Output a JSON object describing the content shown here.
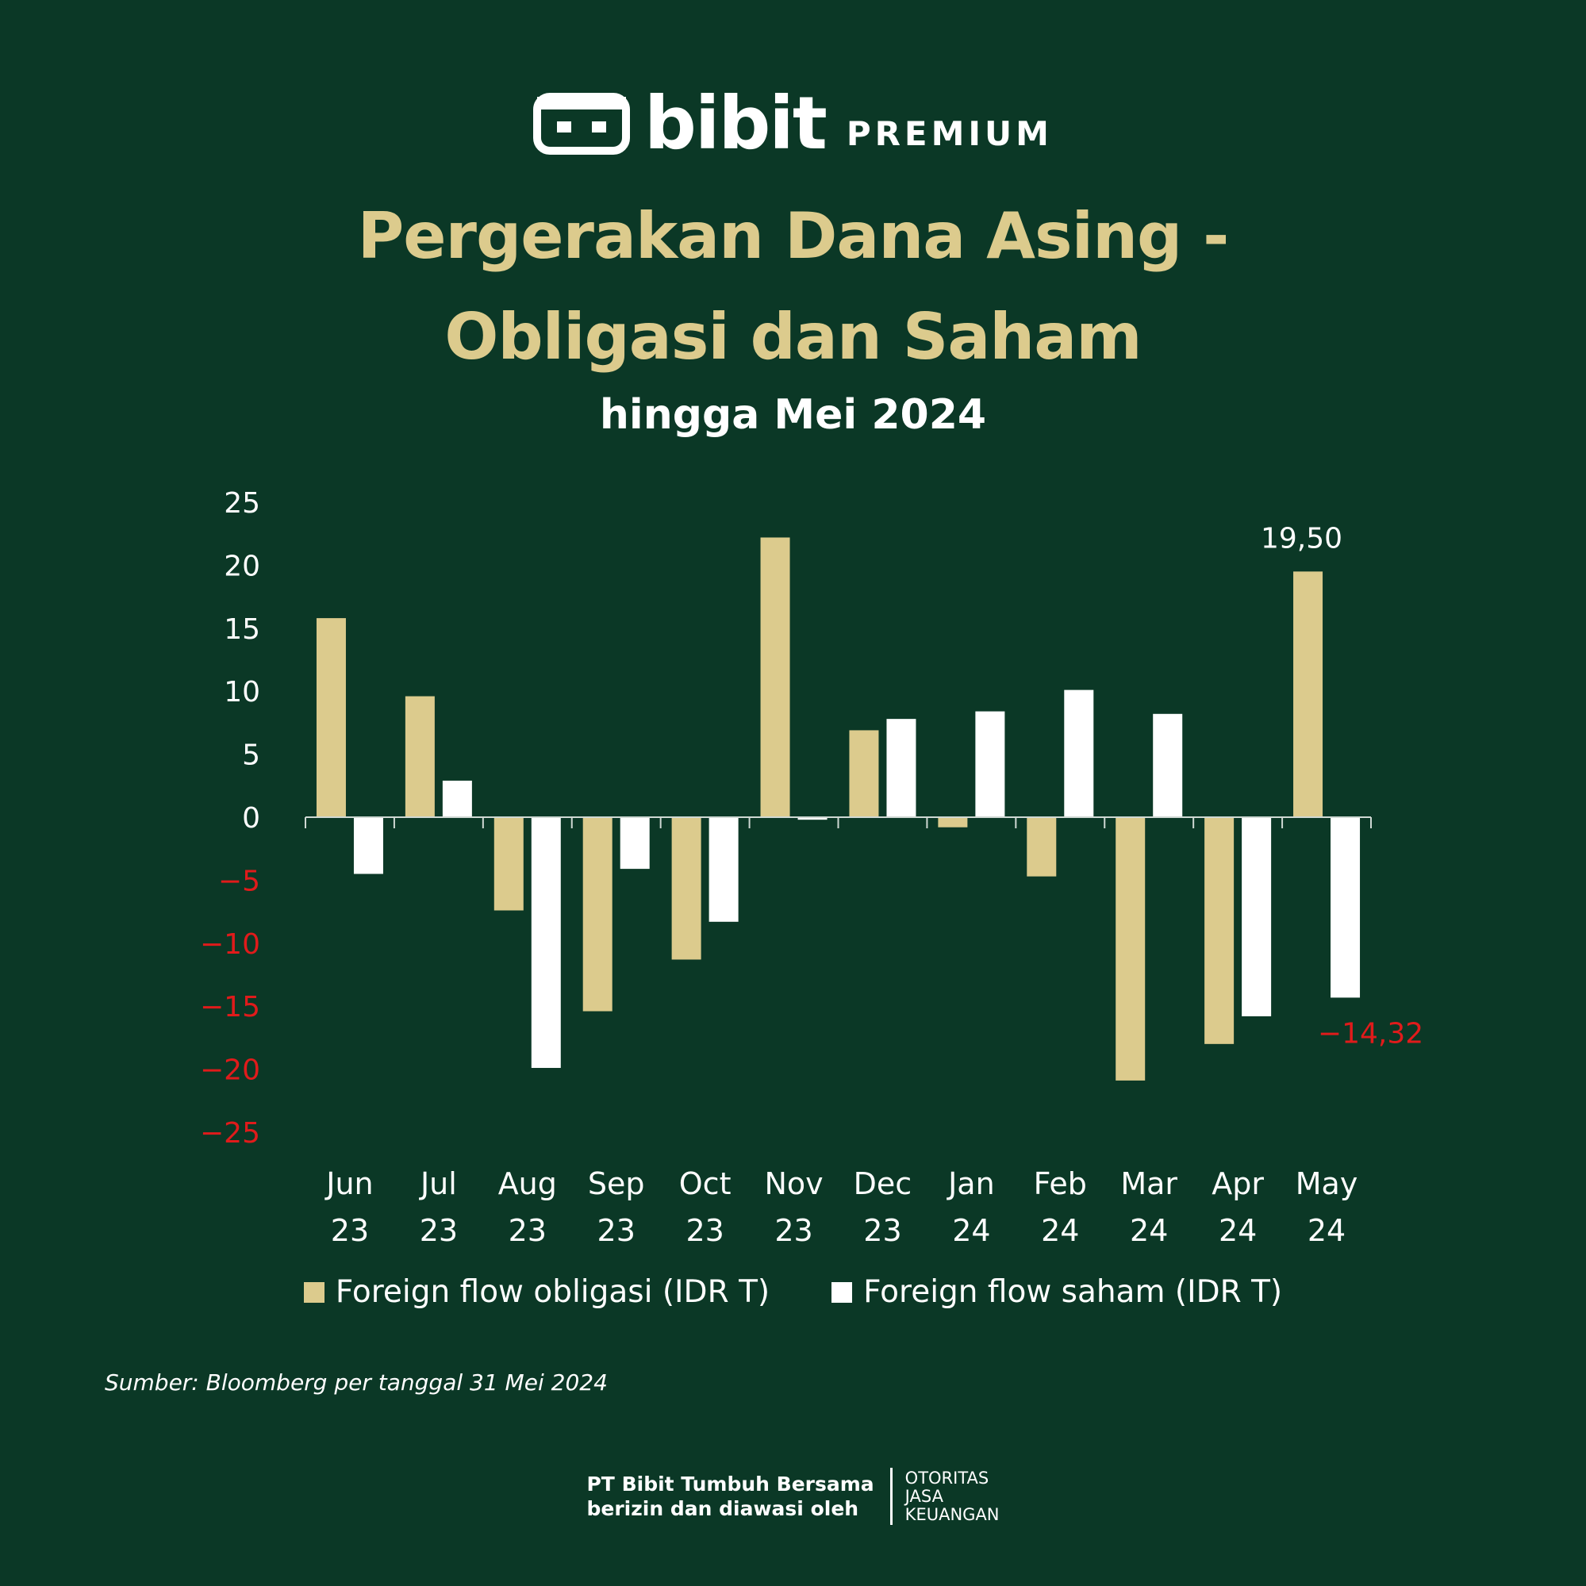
{
  "brand": {
    "name": "bibit",
    "tier": "PREMIUM"
  },
  "title": {
    "line1": "Pergerakan Dana Asing -",
    "line2": "Obligasi dan Saham"
  },
  "subtitle": "hingga Mei 2024",
  "colors": {
    "background": "#0b3826",
    "obligasi": "#dccb8d",
    "saham": "#ffffff",
    "negative_label": "#e01b1b",
    "title": "#dccb8d"
  },
  "chart_data": {
    "type": "bar",
    "categories": [
      [
        "Jun",
        "23"
      ],
      [
        "Jul",
        "23"
      ],
      [
        "Aug",
        "23"
      ],
      [
        "Sep",
        "23"
      ],
      [
        "Oct",
        "23"
      ],
      [
        "Nov",
        "23"
      ],
      [
        "Dec",
        "23"
      ],
      [
        "Jan",
        "24"
      ],
      [
        "Feb",
        "24"
      ],
      [
        "Mar",
        "24"
      ],
      [
        "Apr",
        "24"
      ],
      [
        "May",
        "24"
      ]
    ],
    "series": [
      {
        "name": "Foreign flow obligasi (IDR T)",
        "color": "#dccb8d",
        "values": [
          15.8,
          9.6,
          -7.4,
          -15.4,
          -11.3,
          22.2,
          6.9,
          -0.8,
          -4.7,
          -20.9,
          -18.0,
          19.5
        ]
      },
      {
        "name": "Foreign flow saham (IDR T)",
        "color": "#ffffff",
        "values": [
          -4.5,
          2.9,
          -19.9,
          -4.1,
          -8.3,
          -0.2,
          7.8,
          8.4,
          10.1,
          8.2,
          -15.8,
          -14.32
        ]
      }
    ],
    "ylim": [
      -25,
      25
    ],
    "yticks": [
      25,
      20,
      15,
      10,
      5,
      0,
      -5,
      -10,
      -15,
      -20,
      -25
    ],
    "annotations": [
      {
        "text": "19,50",
        "series": 0,
        "index": 11
      },
      {
        "text": "-14,32",
        "series": 1,
        "index": 11
      }
    ],
    "legend": "bottom-center",
    "grid": false
  },
  "source": "Sumber: Bloomberg per tanggal 31 Mei 2024",
  "footer": {
    "line1": "PT Bibit Tumbuh Bersama",
    "line2": "berizin dan diawasi oleh",
    "ojk": [
      "OTORITAS",
      "JASA",
      "KEUANGAN"
    ]
  }
}
